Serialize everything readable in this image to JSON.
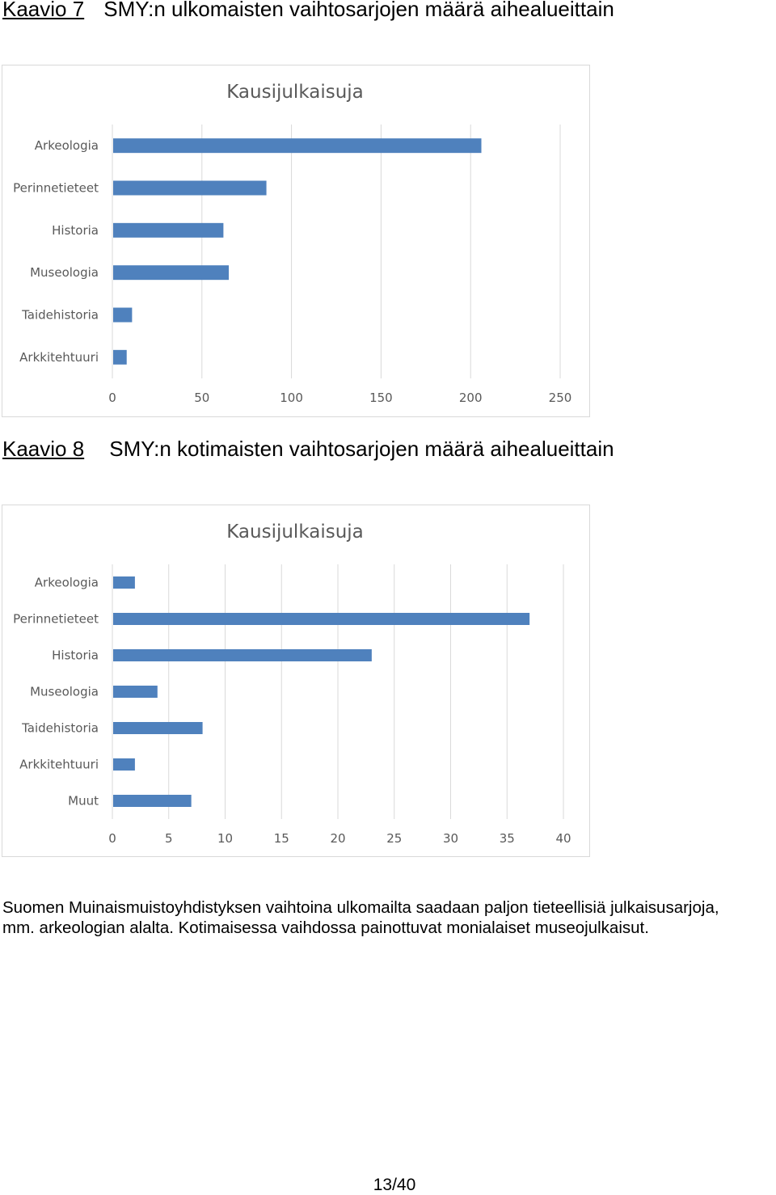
{
  "captions": [
    {
      "number": "Kaavio 7",
      "text": "SMY:n ulkomaisten vaihtosarjojen määrä aihealueittain"
    },
    {
      "number": "Kaavio 8",
      "text": "SMY:n kotimaisten vaihtosarjojen määrä aihealueittain"
    }
  ],
  "chart_data": [
    {
      "type": "bar",
      "orientation": "horizontal",
      "title": "Kausijulkaisuja",
      "xlabel": "",
      "ylabel": "",
      "categories": [
        "Arkeologia",
        "Perinnetieteet",
        "Historia",
        "Museologia",
        "Taidehistoria",
        "Arkkitehtuuri"
      ],
      "values": [
        206,
        86,
        62,
        65,
        11,
        8
      ],
      "xlim": [
        0,
        250
      ],
      "ticks": [
        0,
        50,
        100,
        150,
        200,
        250
      ],
      "grid": true,
      "legend": "none",
      "bar_color": "#4f81bd"
    },
    {
      "type": "bar",
      "orientation": "horizontal",
      "title": "Kausijulkaisuja",
      "xlabel": "",
      "ylabel": "",
      "categories": [
        "Arkeologia",
        "Perinnetieteet",
        "Historia",
        "Museologia",
        "Taidehistoria",
        "Arkkitehtuuri",
        "Muut"
      ],
      "values": [
        2,
        37,
        23,
        4,
        8,
        2,
        7
      ],
      "xlim": [
        0,
        40
      ],
      "ticks": [
        0,
        5,
        10,
        15,
        20,
        25,
        30,
        35,
        40
      ],
      "grid": true,
      "legend": "none",
      "bar_color": "#4f81bd"
    }
  ],
  "paragraph": {
    "line1": "Suomen Muinaismuistoyhdistyksen vaihtoina ulkomailta saadaan paljon tieteellisiä julkaisusarjoja,",
    "line2": "mm. arkeologian alalta. Kotimaisessa vaihdossa painottuvat monialaiset museojulkaisut."
  },
  "page_number": "13/40",
  "colors": {
    "bar": "#4f81bd",
    "grid": "#d9d9d9",
    "label": "#595959",
    "title": "#595959"
  }
}
